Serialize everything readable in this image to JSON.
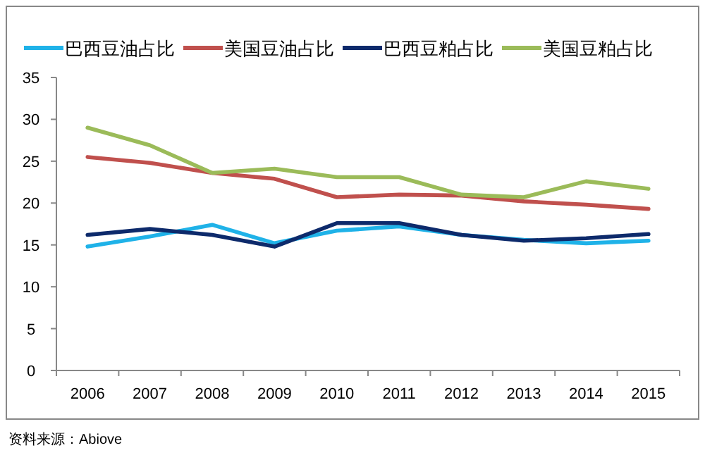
{
  "chart_data": {
    "type": "line",
    "categories": [
      "2006",
      "2007",
      "2008",
      "2009",
      "2010",
      "2011",
      "2012",
      "2013",
      "2014",
      "2015"
    ],
    "series": [
      {
        "name": "巴西豆油占比",
        "color": "#1fb2e8",
        "values": [
          14.8,
          16.0,
          17.4,
          15.2,
          16.7,
          17.2,
          16.2,
          15.6,
          15.2,
          15.5
        ]
      },
      {
        "name": "美国豆油占比",
        "color": "#c0504d",
        "values": [
          25.5,
          24.8,
          23.6,
          22.9,
          20.7,
          21.0,
          20.9,
          20.2,
          19.8,
          19.3
        ]
      },
      {
        "name": "巴西豆粕占比",
        "color": "#0d2a6b",
        "values": [
          16.2,
          16.9,
          16.2,
          14.8,
          17.6,
          17.6,
          16.2,
          15.5,
          15.8,
          16.3
        ]
      },
      {
        "name": "美国豆粕占比",
        "color": "#9bbb59",
        "values": [
          29.0,
          26.9,
          23.6,
          24.1,
          23.1,
          23.1,
          21.0,
          20.7,
          22.6,
          21.7
        ]
      }
    ],
    "ylim": [
      0,
      35
    ],
    "yticks": [
      0,
      5,
      10,
      15,
      20,
      25,
      30,
      35
    ],
    "grid": false,
    "legend": "top",
    "marker": "none",
    "line_style": "solid",
    "annotations": [
      "资料来源：Abiove"
    ]
  }
}
